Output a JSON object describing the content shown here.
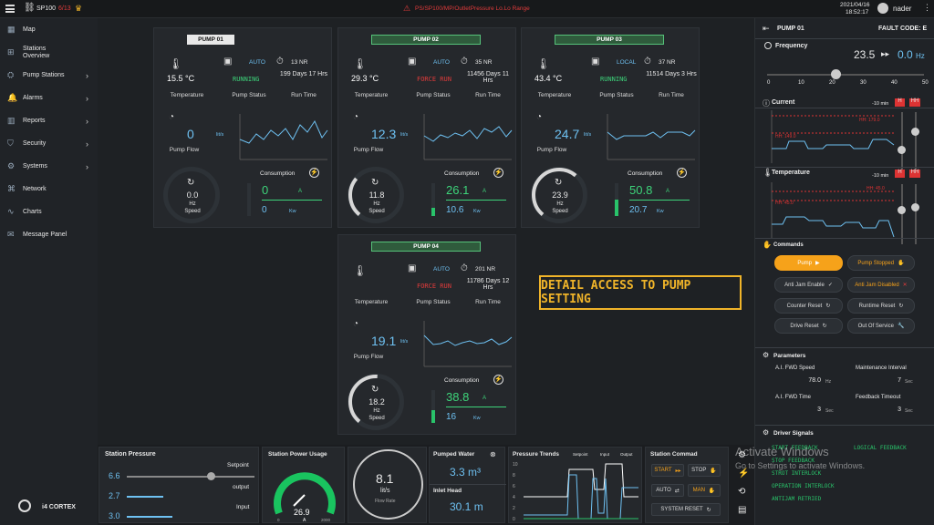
{
  "topbar": {
    "app": "SP100",
    "alarm_count": "6/13",
    "path": "PS/SP100/MP/OutletPressure Lo.Lo Range",
    "date": "2021/04/16",
    "time": "18:52:17",
    "user": "nader"
  },
  "sidebar": {
    "items": [
      {
        "label": "Map",
        "icon": "map-icon"
      },
      {
        "label": "Stations\nOverview",
        "icon": "grid-icon"
      },
      {
        "label": "Pump Stations",
        "icon": "pump-icon",
        "chev": true
      },
      {
        "label": "Alarms",
        "icon": "bell-icon",
        "chev": true
      },
      {
        "label": "Reports",
        "icon": "chart-icon",
        "chev": true
      },
      {
        "label": "Security",
        "icon": "shield-icon",
        "chev": true
      },
      {
        "label": "Systems",
        "icon": "gear-icon",
        "chev": true
      },
      {
        "label": "Network",
        "icon": "network-icon"
      },
      {
        "label": "Charts",
        "icon": "line-chart-icon"
      },
      {
        "label": "Message Panel",
        "icon": "message-icon"
      }
    ],
    "logo": "i4 CORTEX"
  },
  "pumps": [
    {
      "title": "PUMP 01",
      "temp": "15.5 °C",
      "mode": "AUTO",
      "status": "RUNNING",
      "nr": "13 NR",
      "runtime": "199 Days 17 Hrs",
      "flow": "0",
      "speed": "0.0",
      "cons_a": "0",
      "cons_kw": "0",
      "speed_frac": 0.0
    },
    {
      "title": "PUMP 02",
      "temp": "29.3 °C",
      "mode": "AUTO",
      "status": "FORCE RUN",
      "nr": "35 NR",
      "runtime": "11456 Days 11 Hrs",
      "flow": "12.3",
      "speed": "11.8",
      "cons_a": "26.1",
      "cons_kw": "10.6",
      "speed_frac": 0.25
    },
    {
      "title": "PUMP 03",
      "temp": "43.4 °C",
      "mode": "LOCAL",
      "status": "RUNNING",
      "nr": "37 NR",
      "runtime": "11514 Days 3 Hrs",
      "flow": "24.7",
      "speed": "23.9",
      "cons_a": "50.8",
      "cons_kw": "20.7",
      "speed_frac": 0.5
    },
    {
      "title": "PUMP 04",
      "temp": "",
      "mode": "AUTO",
      "status": "FORCE RUN",
      "nr": "201 NR",
      "runtime": "11786 Days 12 Hrs",
      "flow": "19.1",
      "speed": "18.2",
      "cons_a": "38.8",
      "cons_kw": "16",
      "speed_frac": 0.4
    }
  ],
  "labels": {
    "temperature": "Temperature",
    "pump_status": "Pump Status",
    "run_time": "Run Time",
    "pump_flow": "Pump Flow",
    "consumption": "Consumption",
    "hz": "Hz",
    "speed": "Speed",
    "a": "A",
    "kw": "Kw",
    "lits": "lit/s"
  },
  "callout": "DETAIL ACCESS TO PUMP SETTING",
  "right": {
    "title": "PUMP 01",
    "fault": "FAULT CODE: E",
    "frequency_label": "Frequency",
    "freq_set": "23.5",
    "freq_act": "0.0",
    "freq_unit": "Hz",
    "freq_ticks": [
      "0",
      "10",
      "20",
      "30",
      "40",
      "50"
    ],
    "current_label": "Current",
    "temperature_label": "Temperature",
    "minus10": "-10 min",
    "h": "H",
    "hh": "HH",
    "current_hh": "HH: 179.0",
    "current_h": "HH: 149.0",
    "temp_hh": "HH: 45.0",
    "temp_h": "HH: 45.0",
    "commands_label": "Commands",
    "cmd": {
      "pump": "Pump",
      "pump_stopped": "Pump Stopped",
      "anti_enable": "Anti Jam Enable",
      "anti_disabled": "Anti Jam Disabled",
      "counter": "Counter Reset",
      "runtime": "Runtime Reset",
      "drive": "Drive Reset",
      "oos": "Out Of Service"
    },
    "params_label": "Parameters",
    "p1": "A.I. FWD Speed",
    "p1v": "78.0",
    "p1u": "Hz",
    "p2": "Maintenance Interval",
    "p2v": "7",
    "p2u": "Sec",
    "p3": "A.I. FWD Time",
    "p3v": "3",
    "p3u": "Sec",
    "p4": "Feedback Timeout",
    "p4v": "3",
    "p4u": "Sec",
    "signals_label": "Driver Signals",
    "signals": [
      "START FEEDBACK",
      "LOGICAL FEEDBACK",
      "STOP FEEDBACK",
      "",
      "STROT INTERLOCK",
      "",
      "OPERATION INTERLOCK",
      "",
      "ANTIJAM RETRIED",
      ""
    ]
  },
  "bottom": {
    "station_pressure": "Station Pressure",
    "setpoint": "Setpoint",
    "output": "output",
    "input": "Input",
    "sp_v": "6.6",
    "out_v": "2.7",
    "in_v": "3.0",
    "power_usage": "Station Power Usage",
    "power": "26.9",
    "power_unit": "A",
    "power_min": "0",
    "power_max": "2000",
    "flow": "8.1",
    "flow_unit": "lit/s",
    "flow_rate": "Flow Rate",
    "pumped_water": "Pumped Water",
    "pumped": "3.3 m³",
    "inlet_head": "Inlet Head",
    "head": "30.1 m",
    "trends": "Pressure Trends",
    "legend": [
      "Setpoint",
      "Input",
      "Output"
    ],
    "trend_ticks": [
      "10",
      "8",
      "6",
      "4",
      "2",
      "0"
    ],
    "cmd": "Station Commad",
    "start": "START",
    "stop": "STOP",
    "auto": "AUTO",
    "man": "MAN",
    "reset": "SYSTEM RESET"
  },
  "watermark": {
    "l1": "Activate Windows",
    "l2": "Go to Settings to activate Windows."
  }
}
